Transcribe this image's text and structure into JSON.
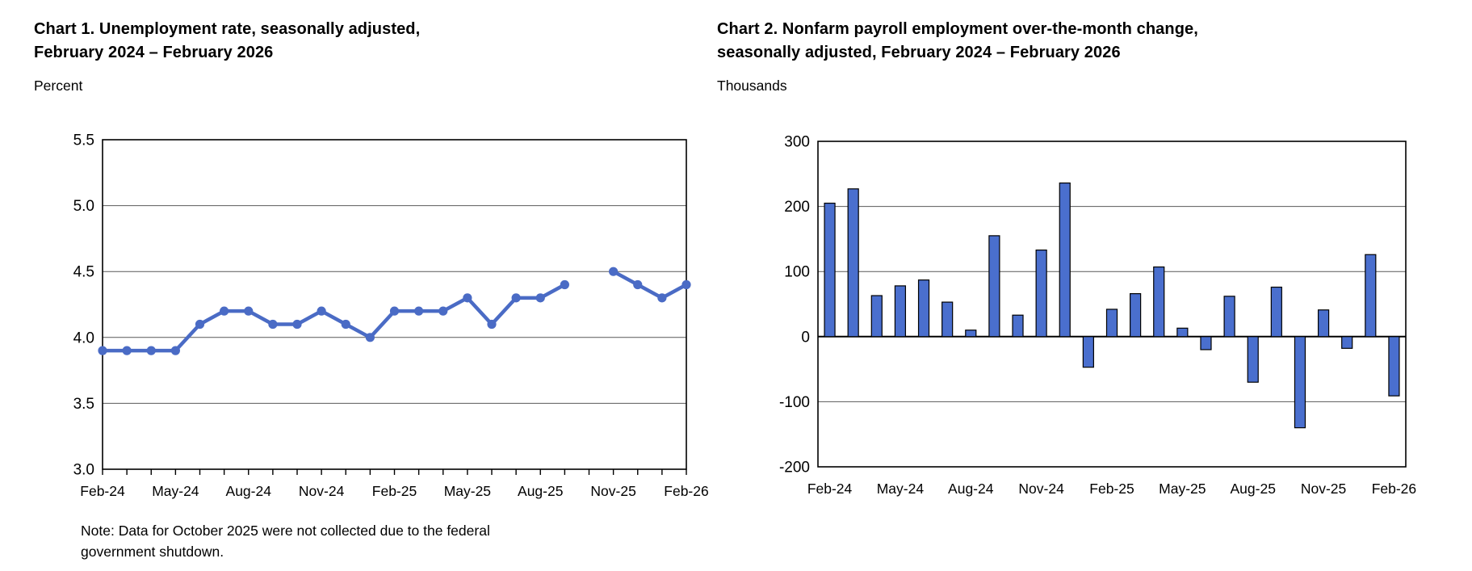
{
  "colors": {
    "line": "#4a6bc5",
    "bar_fill": "#4a6fce",
    "bar_border": "#000000",
    "grid": "#595959",
    "axis": "#000000",
    "text": "#000000",
    "background": "#ffffff"
  },
  "chart1": {
    "title_lines": [
      "Chart 1. Unemployment rate, seasonally adjusted,",
      "February 2024 – February 2026"
    ],
    "unit": "Percent",
    "note_lines": [
      "Note: Data for October 2025 were not collected due to the federal",
      "government shutdown."
    ]
  },
  "chart2": {
    "title_lines": [
      "Chart 2. Nonfarm payroll employment over-the-month change,",
      "seasonally adjusted, February 2024 – February 2026"
    ],
    "unit": "Thousands"
  },
  "chart_data": [
    {
      "id": "chart1",
      "type": "line",
      "title": "Chart 1. Unemployment rate, seasonally adjusted, February 2024 – February 2026",
      "ylabel": "Percent",
      "categories": [
        "Feb-24",
        "Mar-24",
        "Apr-24",
        "May-24",
        "Jun-24",
        "Jul-24",
        "Aug-24",
        "Sep-24",
        "Oct-24",
        "Nov-24",
        "Dec-24",
        "Jan-25",
        "Feb-25",
        "Mar-25",
        "Apr-25",
        "May-25",
        "Jun-25",
        "Jul-25",
        "Aug-25",
        "Sep-25",
        "Oct-25",
        "Nov-25",
        "Dec-25",
        "Jan-26",
        "Feb-26"
      ],
      "values": [
        3.9,
        3.9,
        3.9,
        3.9,
        4.1,
        4.2,
        4.2,
        4.1,
        4.1,
        4.2,
        4.1,
        4.0,
        4.2,
        4.2,
        4.2,
        4.3,
        4.1,
        4.3,
        4.3,
        4.4,
        null,
        4.5,
        4.4,
        4.3,
        4.4
      ],
      "missing_months": [
        "Oct-25"
      ],
      "ylim": [
        3.0,
        5.5
      ],
      "ytick_labels": [
        "5.5",
        "5.0",
        "4.5",
        "4.0",
        "3.5",
        "3.0"
      ],
      "xtick_labels": [
        "Feb-24",
        "May-24",
        "Aug-24",
        "Nov-24",
        "Feb-25",
        "May-25",
        "Aug-25",
        "Nov-25",
        "Feb-26"
      ],
      "xtick_every": 3,
      "grid": true,
      "legend": "none",
      "note": "Note: Data for October 2025 were not collected due to the federal government shutdown."
    },
    {
      "id": "chart2",
      "type": "bar",
      "title": "Chart 2. Nonfarm payroll employment over-the-month change, seasonally adjusted, February 2024 – February 2026",
      "ylabel": "Thousands",
      "categories": [
        "Feb-24",
        "Mar-24",
        "Apr-24",
        "May-24",
        "Jun-24",
        "Jul-24",
        "Aug-24",
        "Sep-24",
        "Oct-24",
        "Nov-24",
        "Dec-24",
        "Jan-25",
        "Feb-25",
        "Mar-25",
        "Apr-25",
        "May-25",
        "Jun-25",
        "Jul-25",
        "Aug-25",
        "Sep-25",
        "Oct-25",
        "Nov-25",
        "Dec-25",
        "Jan-26",
        "Feb-26"
      ],
      "values": [
        205,
        227,
        63,
        78,
        87,
        53,
        10,
        155,
        33,
        133,
        236,
        -47,
        42,
        66,
        107,
        13,
        -20,
        62,
        -70,
        76,
        -140,
        41,
        -18,
        126,
        -91
      ],
      "ylim": [
        -200,
        300
      ],
      "ytick_labels": [
        "300",
        "200",
        "100",
        "0",
        "-100",
        "-200"
      ],
      "xtick_labels": [
        "Feb-24",
        "May-24",
        "Aug-24",
        "Nov-24",
        "Feb-25",
        "May-25",
        "Aug-25",
        "Nov-25",
        "Feb-26"
      ],
      "xtick_every": 3,
      "grid": true,
      "legend": "none"
    }
  ]
}
